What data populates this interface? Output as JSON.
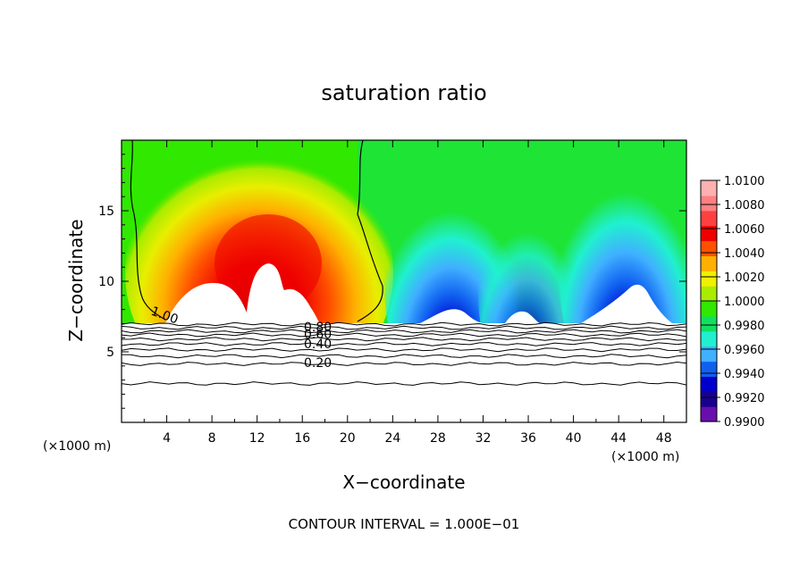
{
  "chart_data": {
    "type": "heatmap",
    "title": "saturation ratio",
    "xlabel": "X−coordinate",
    "ylabel": "Z−coordinate",
    "x_unit_left": "(×1000 m)",
    "x_unit_right": "(×1000 m)",
    "footer": "CONTOUR INTERVAL = 1.000E−01",
    "xlim": [
      0,
      50
    ],
    "ylim": [
      0,
      20
    ],
    "x_ticks": [
      "4",
      "8",
      "12",
      "16",
      "20",
      "24",
      "28",
      "32",
      "36",
      "40",
      "44",
      "48"
    ],
    "y_ticks": [
      "5",
      "10",
      "15"
    ],
    "colorbar": {
      "min": 0.99,
      "max": 1.01,
      "tick_labels": [
        "1.0100",
        "1.0080",
        "1.0060",
        "1.0040",
        "1.0020",
        "1.0000",
        "0.9980",
        "0.9960",
        "0.9940",
        "0.9920",
        "0.9900"
      ],
      "colors": [
        "#6a0dad",
        "#1a0090",
        "#0000cc",
        "#1060f0",
        "#40b0ff",
        "#20f0d0",
        "#10e060",
        "#30e800",
        "#a8ec00",
        "#f0f000",
        "#ffb000",
        "#ff5000",
        "#ee0000",
        "#ff4040",
        "#ff8080",
        "#ffb0b0"
      ]
    },
    "contour_labels": [
      "1.00",
      "0.80",
      "0.60",
      "0.40",
      "0.20"
    ],
    "contour_lines_z": [
      6.95,
      6.7,
      6.45,
      6.2,
      5.9,
      5.55,
      5.15,
      4.7,
      4.15,
      2.75
    ],
    "features": [
      {
        "name": "supersaturated plume",
        "x_center": 12.5,
        "z_top": 15.5,
        "peak_value": 1.0075
      },
      {
        "name": "subsaturated region 1",
        "x_center": 29.5,
        "z_top": 13.0,
        "min_value": 0.9905
      },
      {
        "name": "subsaturated region 2",
        "x_center": 36.0,
        "z_top": 12.5,
        "min_value": 0.993
      },
      {
        "name": "subsaturated region 3",
        "x_center": 46.0,
        "z_top": 15.0,
        "min_value": 0.9905
      }
    ]
  }
}
